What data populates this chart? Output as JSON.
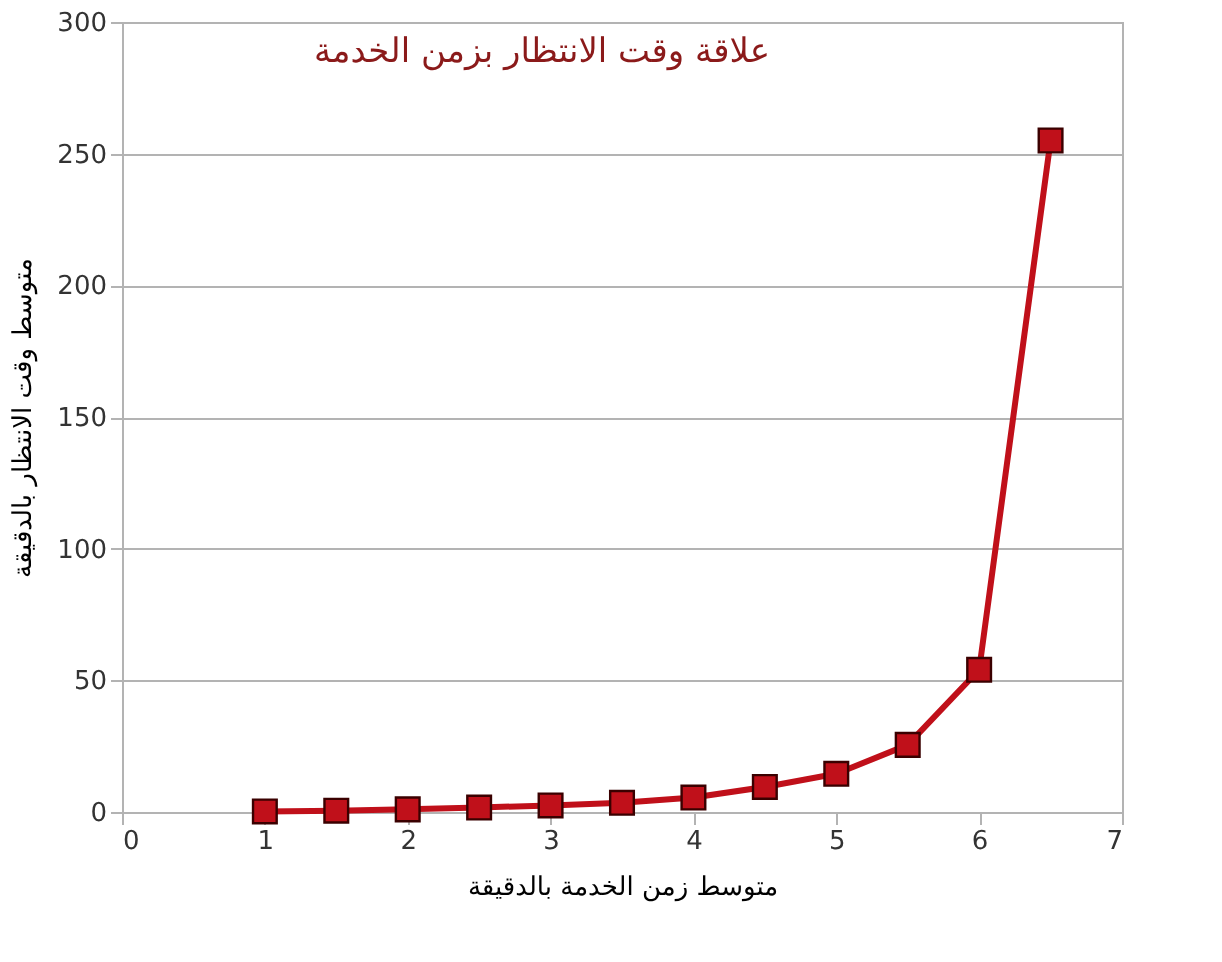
{
  "chart_data": {
    "type": "line",
    "title": "علاقة وقت الانتظار بزمن الخدمة",
    "xlabel": "متوسط زمن الخدمة بالدقيقة",
    "ylabel": "متوسط وقت الانتظار بالدقيقة",
    "x": [
      1,
      1.5,
      2,
      2.5,
      3,
      3.5,
      4,
      4.5,
      5,
      5.5,
      6,
      6.5
    ],
    "series": [
      {
        "color": "#c0101a",
        "values": [
          0.2,
          0.5,
          1,
          1.7,
          2.5,
          3.5,
          5.5,
          9.5,
          14.5,
          25.5,
          54,
          255
        ]
      }
    ],
    "xlim": [
      0,
      7
    ],
    "xticks": [
      0,
      1,
      2,
      3,
      4,
      5,
      6,
      7
    ],
    "ylim": [
      0,
      300
    ],
    "yticks": [
      0,
      50,
      100,
      150,
      200,
      250,
      300
    ],
    "grid": "y",
    "legend": false,
    "marker": "square",
    "line_style": "solid"
  }
}
